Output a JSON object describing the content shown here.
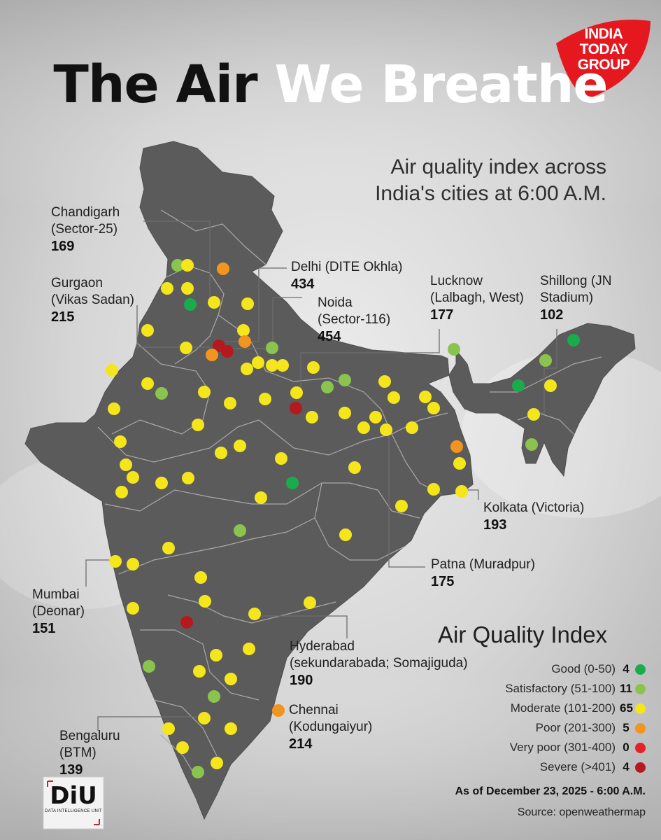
{
  "title_part1": "The Air",
  "title_part2": "We Breathe",
  "subtitle_line1": "Air quality index across",
  "subtitle_line2": "India's cities at 6:00 A.M.",
  "brand_logo": {
    "line1": "INDIA",
    "line2": "TODAY",
    "line3": "GROUP",
    "color": "#e4181e"
  },
  "diu_logo": {
    "text": "DiU",
    "tagline": "DATA INTELLIGENCE UNIT"
  },
  "cities": [
    {
      "id": "chandigarh",
      "name1": "Chandigarh",
      "name2": "(Sector-25)",
      "value": "169"
    },
    {
      "id": "gurgaon",
      "name1": "Gurgaon",
      "name2": "(Vikas Sadan)",
      "value": "215"
    },
    {
      "id": "delhi",
      "name1": "Delhi (DITE Okhla)",
      "name2": "",
      "value": "434"
    },
    {
      "id": "noida",
      "name1": "Noida",
      "name2": "(Sector-116)",
      "value": "454"
    },
    {
      "id": "lucknow",
      "name1": "Lucknow",
      "name2": "(Lalbagh, West)",
      "value": "177"
    },
    {
      "id": "shillong",
      "name1": "Shillong (JN",
      "name2": "Stadium)",
      "value": "102"
    },
    {
      "id": "kolkata",
      "name1": "Kolkata (Victoria)",
      "name2": "",
      "value": "193"
    },
    {
      "id": "patna",
      "name1": "Patna (Muradpur)",
      "name2": "",
      "value": "175"
    },
    {
      "id": "mumbai",
      "name1": "Mumbai",
      "name2": "(Deonar)",
      "value": "151"
    },
    {
      "id": "hyderabad",
      "name1": "Hyderabad",
      "name2": "(sekundarabada; Somajiguda)",
      "value": "190"
    },
    {
      "id": "chennai",
      "name1": "Chennai",
      "name2": "(Kodungaiyur)",
      "value": "214"
    },
    {
      "id": "bengaluru",
      "name1": "Bengaluru",
      "name2": "(BTM)",
      "value": "139"
    }
  ],
  "legend": {
    "title": "Air Quality Index",
    "items": [
      {
        "label": "Good (0-50)",
        "count": "4",
        "color": "#1aab4b"
      },
      {
        "label": "Satisfactory (51-100)",
        "count": "11",
        "color": "#8ac44e"
      },
      {
        "label": "Moderate (101-200)",
        "count": "65",
        "color": "#f5e61b"
      },
      {
        "label": "Poor (201-300)",
        "count": "5",
        "color": "#f2951f"
      },
      {
        "label": "Very poor (301-400)",
        "count": "0",
        "color": "#e62128"
      },
      {
        "label": "Severe (>401)",
        "count": "4",
        "color": "#b5191f"
      }
    ]
  },
  "as_of": "As of December 23, 2025 - 6:00 A.M.",
  "source": "Source: openweathermap",
  "colors": {
    "map_fill": "#5c5b5c",
    "border": "#a9a9a9",
    "leader": "#6d6d6d"
  }
}
